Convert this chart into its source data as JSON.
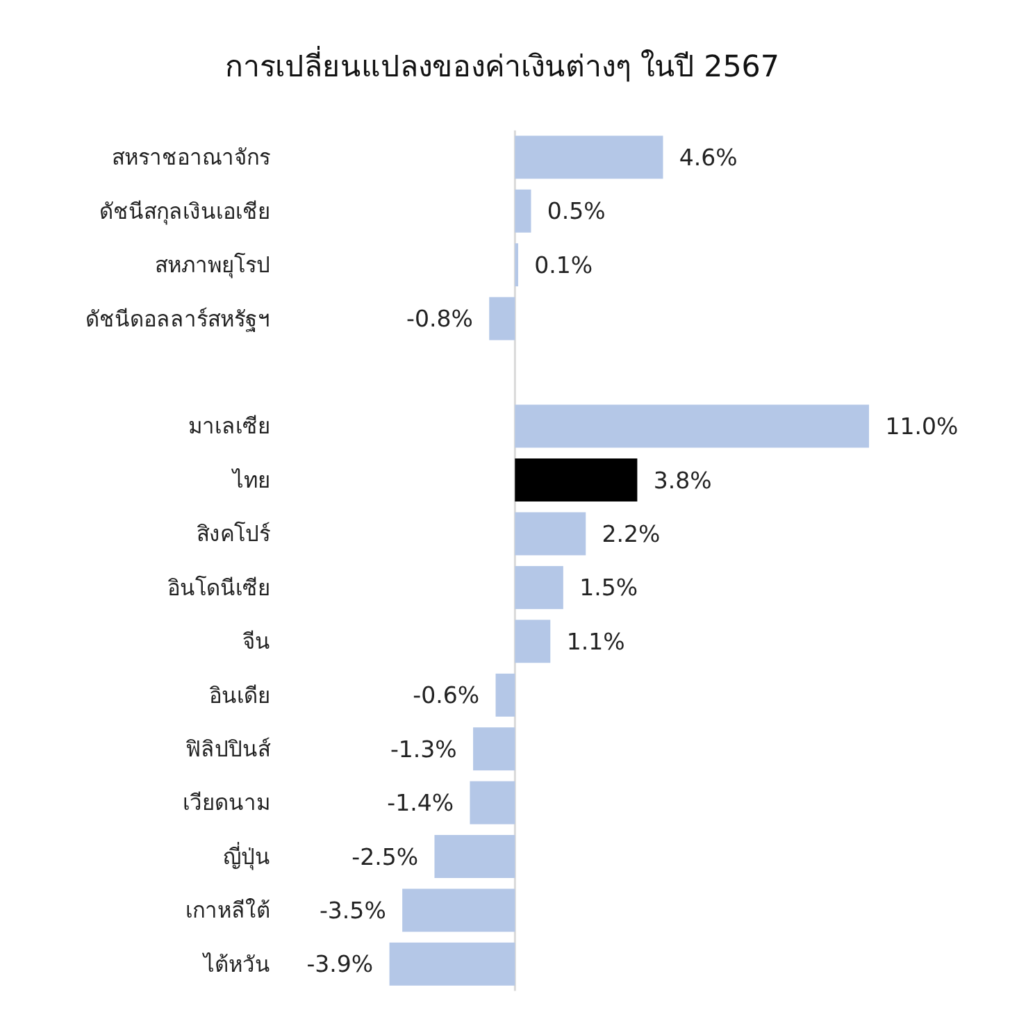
{
  "chart_data": {
    "type": "bar",
    "orientation": "horizontal",
    "title": "การเปลี่ยนแปลงของค่าเงินต่างๆ ในปี 2567",
    "categories": [
      "สหราชอาณาจักร",
      "ดัชนีสกุลเงินเอเชีย",
      "สหภาพยุโรป",
      "ดัชนีดอลลาร์สหรัฐฯ",
      null,
      "มาเลเซีย",
      "ไทย",
      "สิงคโปร์",
      "อินโดนีเซีย",
      "จีน",
      "อินเดีย",
      "ฟิลิปปินส์",
      "เวียดนาม",
      "ญี่ปุ่น",
      "เกาหลีใต้",
      "ไต้หวัน"
    ],
    "values": [
      4.6,
      0.5,
      0.1,
      -0.8,
      null,
      11.0,
      3.8,
      2.2,
      1.5,
      1.1,
      -0.6,
      -1.3,
      -1.4,
      -2.5,
      -3.5,
      -3.9
    ],
    "value_labels": [
      "4.6%",
      "0.5%",
      "0.1%",
      "-0.8%",
      null,
      "11.0%",
      "3.8%",
      "2.2%",
      "1.5%",
      "1.1%",
      "-0.6%",
      "-1.3%",
      "-1.4%",
      "-2.5%",
      "-3.5%",
      "-3.9%"
    ],
    "colors": [
      "#b4c7e7",
      "#b4c7e7",
      "#b4c7e7",
      "#b4c7e7",
      null,
      "#b4c7e7",
      "#000000",
      "#b4c7e7",
      "#b4c7e7",
      "#b4c7e7",
      "#b4c7e7",
      "#b4c7e7",
      "#b4c7e7",
      "#b4c7e7",
      "#b4c7e7",
      "#b4c7e7"
    ],
    "xlim": [
      -3.9,
      11.0
    ],
    "tick_labels": "y"
  }
}
